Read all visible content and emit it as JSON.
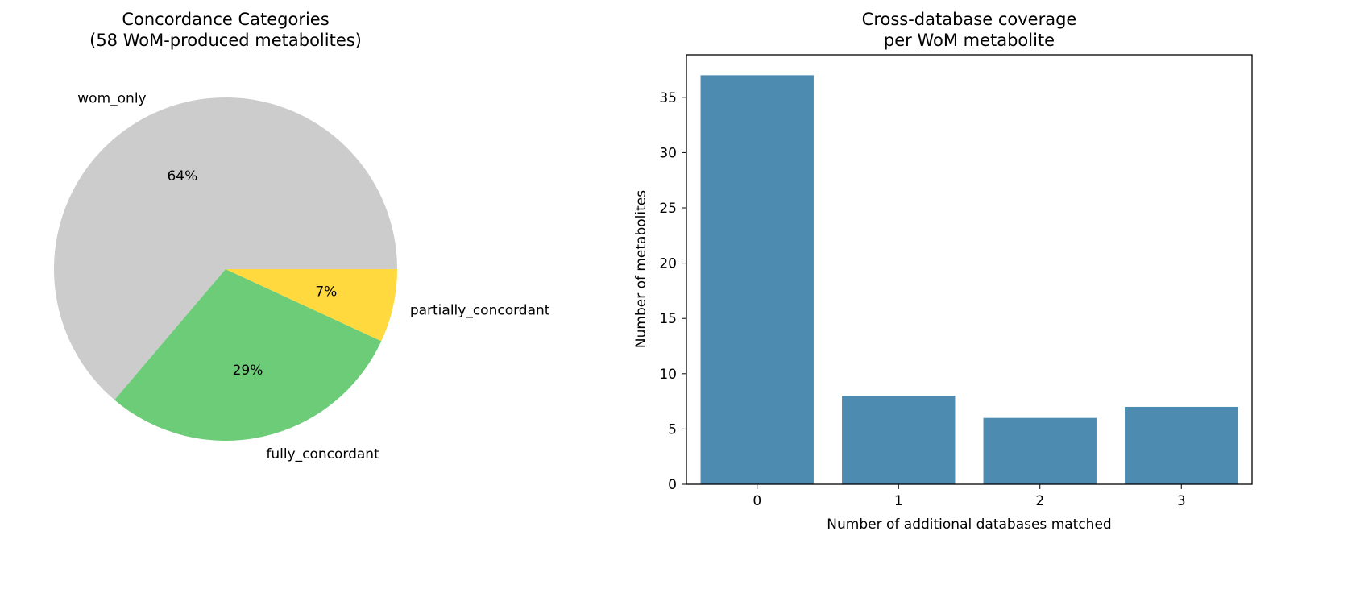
{
  "chart_data": [
    {
      "type": "pie",
      "title": "Concordance Categories\n(58 WoM-produced metabolites)",
      "title_lines": [
        "Concordance Categories",
        "(58 WoM-produced metabolites)"
      ],
      "slices": [
        {
          "label": "wom_only",
          "value": 37,
          "pct_label": "64%",
          "color": "#cccccc"
        },
        {
          "label": "fully_concordant",
          "value": 17,
          "pct_label": "29%",
          "color": "#6ccc77"
        },
        {
          "label": "partially_concordant",
          "value": 4,
          "pct_label": "7%",
          "color": "#ffd93d"
        }
      ],
      "start_angle": 0,
      "direction": "counterclockwise"
    },
    {
      "type": "bar",
      "title": "Cross-database coverage\nper WoM metabolite",
      "title_lines": [
        "Cross-database coverage",
        "per WoM metabolite"
      ],
      "categories": [
        "0",
        "1",
        "2",
        "3"
      ],
      "values": [
        37,
        8,
        6,
        7
      ],
      "xlabel": "Number of additional databases matched",
      "ylabel": "Number of metabolites",
      "ylim": [
        0,
        38.85
      ],
      "xlim": [
        -0.5,
        3.5
      ],
      "yticks": [
        0,
        5,
        10,
        15,
        20,
        25,
        30,
        35
      ],
      "color": "#4d8bb0",
      "grid": false
    }
  ]
}
